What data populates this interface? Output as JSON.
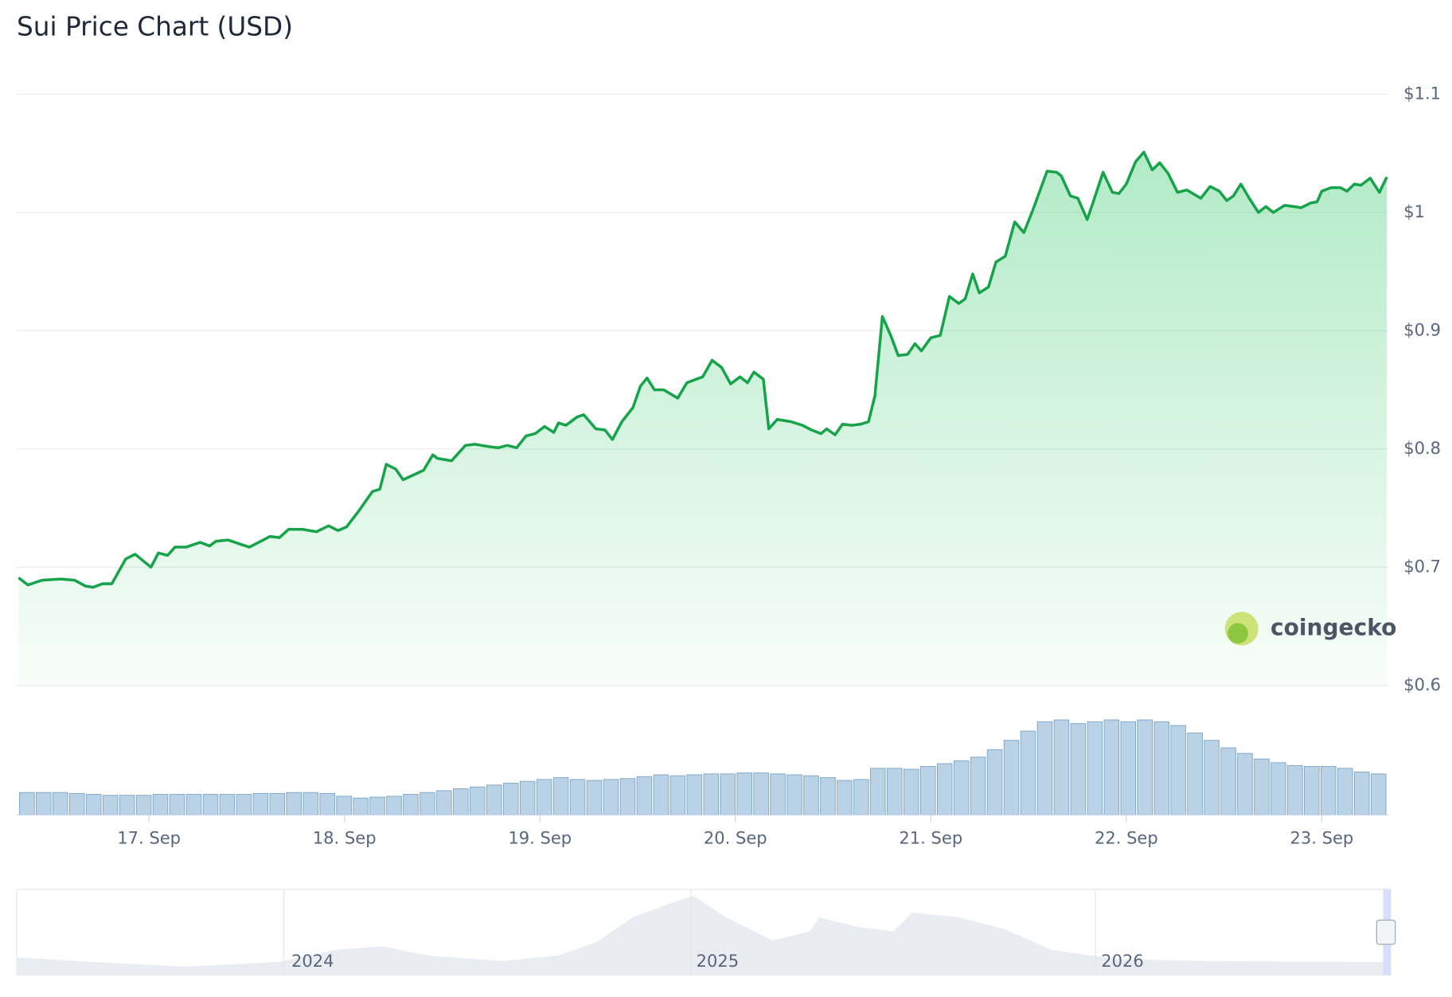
{
  "chart_data": {
    "type": "line",
    "title": "Sui Price Chart (USD)",
    "x": [
      16.333,
      16.381,
      16.452,
      16.548,
      16.619,
      16.676,
      16.714,
      16.762,
      16.81,
      16.881,
      16.929,
      17.01,
      17.048,
      17.095,
      17.133,
      17.19,
      17.262,
      17.31,
      17.343,
      17.405,
      17.476,
      17.514,
      17.619,
      17.667,
      17.714,
      17.786,
      17.857,
      17.919,
      17.967,
      18.01,
      18.071,
      18.143,
      18.181,
      18.214,
      18.262,
      18.3,
      18.405,
      18.452,
      18.476,
      18.548,
      18.619,
      18.667,
      18.738,
      18.786,
      18.833,
      18.881,
      18.929,
      18.976,
      19.024,
      19.071,
      19.095,
      19.133,
      19.19,
      19.224,
      19.286,
      19.333,
      19.371,
      19.419,
      19.476,
      19.514,
      19.548,
      19.586,
      19.633,
      19.705,
      19.752,
      19.833,
      19.881,
      19.929,
      19.976,
      20.024,
      20.062,
      20.095,
      20.143,
      20.171,
      20.214,
      20.286,
      20.343,
      20.39,
      20.438,
      20.467,
      20.51,
      20.548,
      20.595,
      20.643,
      20.681,
      20.714,
      20.752,
      20.795,
      20.833,
      20.881,
      20.919,
      20.952,
      21,
      21.048,
      21.095,
      21.143,
      21.176,
      21.214,
      21.248,
      21.295,
      21.333,
      21.381,
      21.429,
      21.476,
      21.524,
      21.595,
      21.643,
      21.667,
      21.714,
      21.752,
      21.8,
      21.833,
      21.881,
      21.929,
      21.962,
      22,
      22.048,
      22.09,
      22.133,
      22.171,
      22.214,
      22.262,
      22.31,
      22.381,
      22.429,
      22.476,
      22.514,
      22.548,
      22.586,
      22.629,
      22.676,
      22.714,
      22.752,
      22.81,
      22.857,
      22.895,
      22.943,
      22.976,
      23,
      23.048,
      23.095,
      23.129,
      23.167,
      23.2,
      23.248,
      23.295,
      23.333
    ],
    "values": [
      0.691,
      0.685,
      0.689,
      0.69,
      0.689,
      0.684,
      0.683,
      0.686,
      0.686,
      0.707,
      0.711,
      0.7,
      0.712,
      0.71,
      0.717,
      0.717,
      0.721,
      0.718,
      0.722,
      0.723,
      0.719,
      0.717,
      0.726,
      0.725,
      0.732,
      0.732,
      0.73,
      0.735,
      0.731,
      0.734,
      0.747,
      0.764,
      0.766,
      0.787,
      0.783,
      0.774,
      0.782,
      0.795,
      0.792,
      0.79,
      0.803,
      0.804,
      0.802,
      0.801,
      0.803,
      0.801,
      0.811,
      0.813,
      0.819,
      0.814,
      0.822,
      0.82,
      0.827,
      0.829,
      0.817,
      0.816,
      0.808,
      0.823,
      0.835,
      0.853,
      0.86,
      0.85,
      0.85,
      0.843,
      0.856,
      0.861,
      0.875,
      0.869,
      0.855,
      0.861,
      0.856,
      0.865,
      0.859,
      0.817,
      0.825,
      0.823,
      0.82,
      0.816,
      0.813,
      0.817,
      0.812,
      0.821,
      0.82,
      0.821,
      0.823,
      0.845,
      0.912,
      0.896,
      0.879,
      0.88,
      0.889,
      0.883,
      0.894,
      0.896,
      0.929,
      0.923,
      0.927,
      0.948,
      0.932,
      0.937,
      0.958,
      0.963,
      0.992,
      0.983,
      1.003,
      1.035,
      1.034,
      1.031,
      1.014,
      1.012,
      0.994,
      1.01,
      1.034,
      1.017,
      1.016,
      1.024,
      1.043,
      1.051,
      1.036,
      1.042,
      1.033,
      1.017,
      1.019,
      1.012,
      1.022,
      1.018,
      1.01,
      1.014,
      1.024,
      1.012,
      1,
      1.005,
      1,
      1.006,
      1.005,
      1.004,
      1.008,
      1.009,
      1.018,
      1.021,
      1.021,
      1.018,
      1.024,
      1.023,
      1.029,
      1.017,
      1.03
    ],
    "color": "#16a34a",
    "xlim": [
      16.333,
      23.333
    ],
    "xticks": [
      {
        "value": 17,
        "label": "17. Sep"
      },
      {
        "value": 18,
        "label": "18. Sep"
      },
      {
        "value": 19,
        "label": "19. Sep"
      },
      {
        "value": 20,
        "label": "20. Sep"
      },
      {
        "value": 21,
        "label": "21. Sep"
      },
      {
        "value": 22,
        "label": "22. Sep"
      },
      {
        "value": 23,
        "label": "23. Sep"
      }
    ],
    "ylim": [
      0.6,
      1.1
    ],
    "yticks": [
      {
        "value": 0.6,
        "label": "$0.6"
      },
      {
        "value": 0.7,
        "label": "$0.7"
      },
      {
        "value": 0.8,
        "label": "$0.8"
      },
      {
        "value": 0.9,
        "label": "$0.9"
      },
      {
        "value": 1,
        "label": "$1"
      },
      {
        "value": 1.1,
        "label": "$1.1"
      }
    ],
    "grid": true,
    "volume": {
      "color": "#b9d2e6",
      "values": [
        24,
        24,
        24,
        23,
        22,
        21,
        21,
        21,
        22,
        22,
        22,
        22,
        22,
        22,
        23,
        23,
        24,
        24,
        23,
        20,
        18,
        19,
        20,
        22,
        24,
        26,
        28,
        30,
        32,
        34,
        36,
        38,
        40,
        38,
        37,
        38,
        39,
        41,
        43,
        42,
        43,
        44,
        44,
        45,
        45,
        44,
        43,
        42,
        40,
        37,
        38,
        50,
        50,
        49,
        52,
        55,
        58,
        62,
        70,
        80,
        90,
        100,
        102,
        98,
        100,
        102,
        100,
        102,
        100,
        96,
        88,
        80,
        72,
        66,
        60,
        56,
        53,
        52,
        52,
        50,
        46,
        44
      ]
    },
    "navigator_labels": [
      "2024",
      "2025",
      "2026"
    ],
    "watermark": "coingecko"
  }
}
